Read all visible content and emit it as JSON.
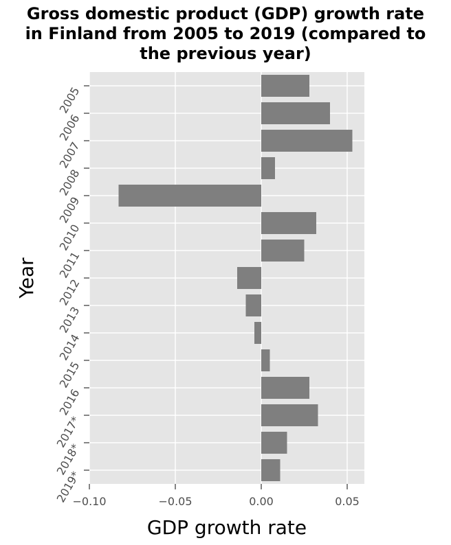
{
  "chart_data": {
    "type": "bar",
    "orientation": "horizontal",
    "title_lines": [
      "Gross domestic product (GDP) growth rate",
      "in Finland from 2005 to 2019 (compared to",
      "the previous year)"
    ],
    "xlabel": "GDP growth rate",
    "ylabel": "Year",
    "categories": [
      "2005",
      "2006",
      "2007",
      "2008",
      "2009",
      "2010",
      "2011",
      "2012",
      "2013",
      "2014",
      "2015",
      "2016",
      "2017*",
      "2018*",
      "2019*"
    ],
    "values": [
      0.028,
      0.04,
      0.053,
      0.008,
      -0.083,
      0.032,
      0.025,
      -0.014,
      -0.009,
      -0.004,
      0.005,
      0.028,
      0.033,
      0.015,
      0.011
    ],
    "xlim": [
      -0.1,
      0.06
    ],
    "xticks": [
      -0.1,
      -0.05,
      0.0,
      0.05
    ],
    "xtick_labels": [
      "−0.10",
      "−0.05",
      "0.00",
      "0.05"
    ],
    "grid": true,
    "colors": {
      "bar": "#7f7f7f",
      "panel": "#e5e5e5",
      "grid": "#ffffff"
    }
  }
}
